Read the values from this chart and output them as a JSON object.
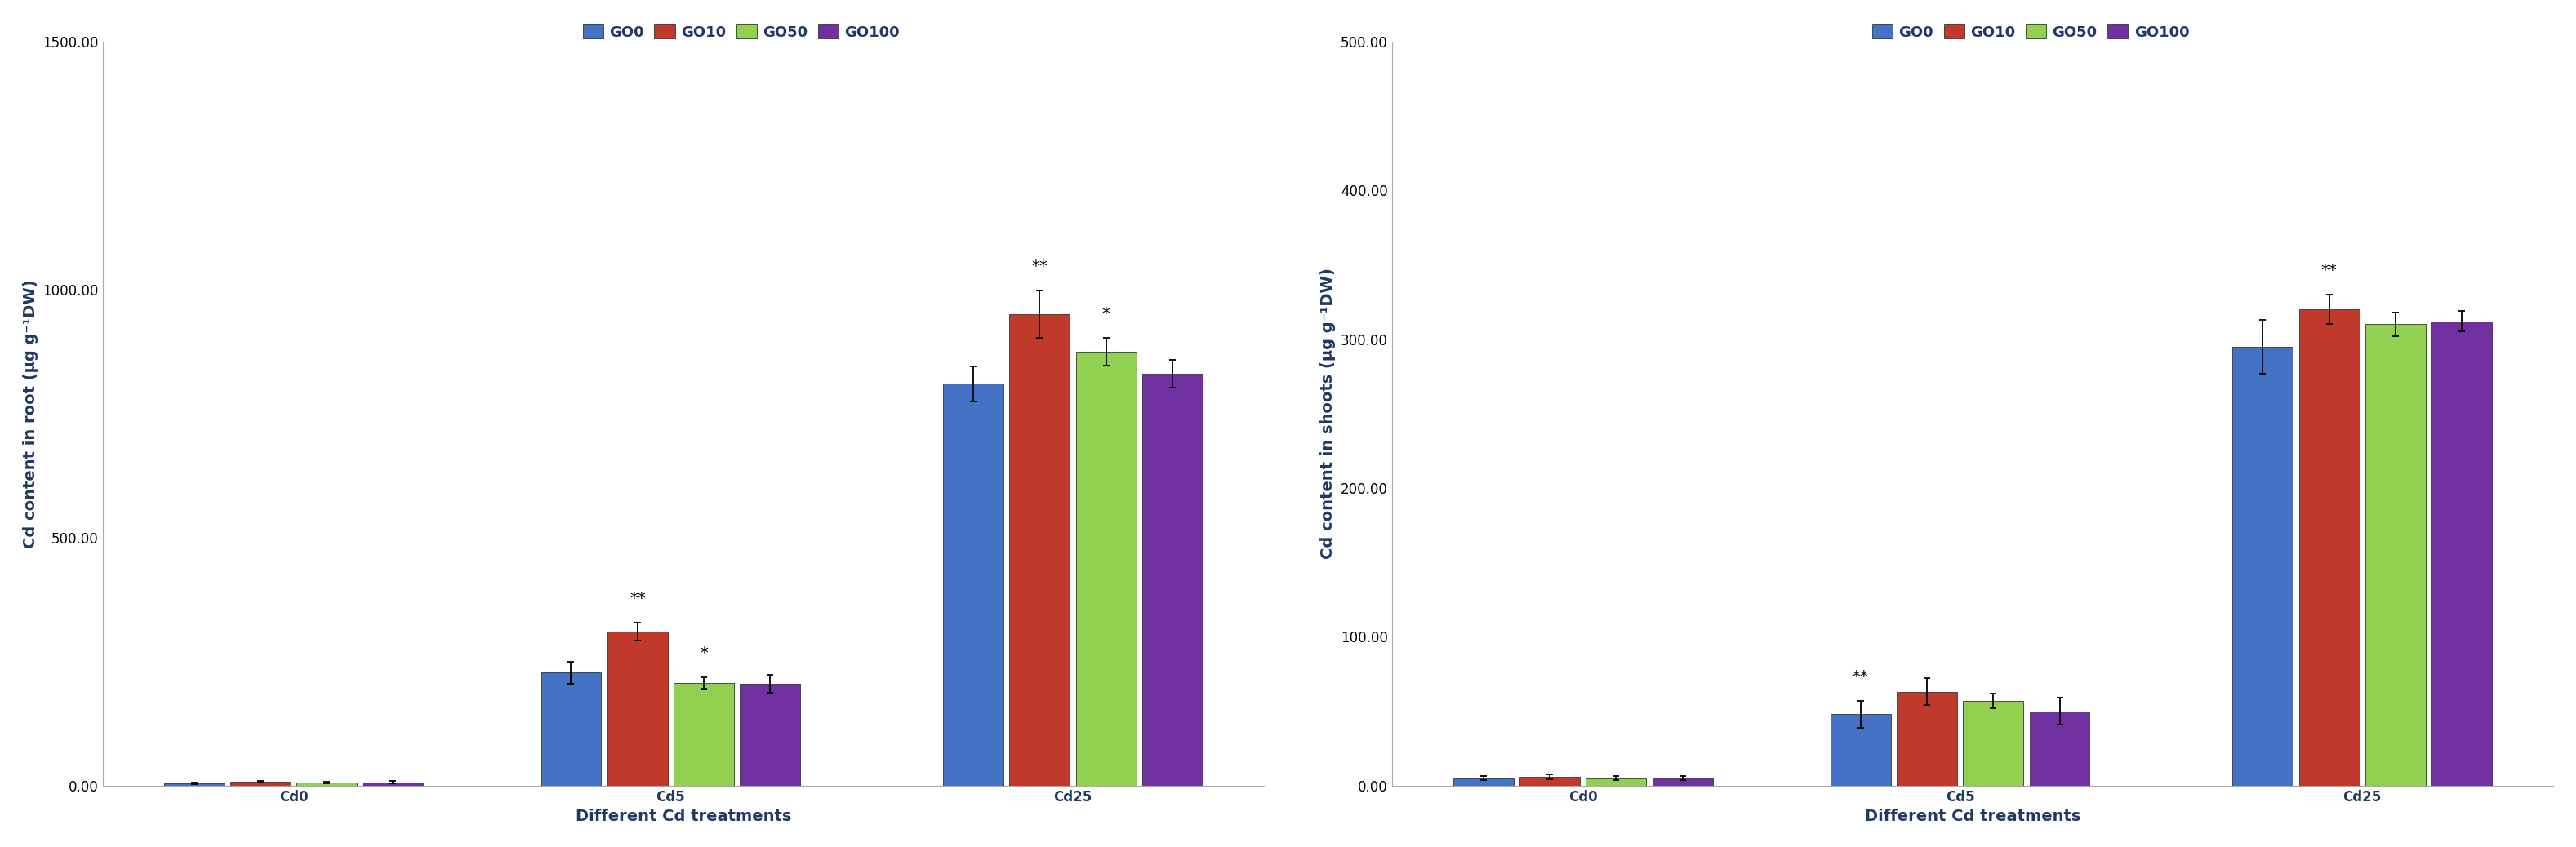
{
  "chart1": {
    "ylabel": "Cd content in root (μg g⁻¹DW)",
    "xlabel": "Different Cd treatments",
    "categories": [
      "Cd0",
      "Cd5",
      "Cd25"
    ],
    "groups": [
      "GO0",
      "GO10",
      "GO50",
      "GO100"
    ],
    "colors": [
      "#4472C4",
      "#C0392B",
      "#92D050",
      "#7030A0"
    ],
    "values": [
      [
        5,
        228,
        810
      ],
      [
        8,
        310,
        950
      ],
      [
        6,
        207,
        875
      ],
      [
        7,
        205,
        830
      ]
    ],
    "errors": [
      [
        2,
        22,
        35
      ],
      [
        2,
        18,
        48
      ],
      [
        2,
        12,
        28
      ],
      [
        2,
        18,
        28
      ]
    ],
    "ylim": [
      0,
      1500
    ],
    "yticks": [
      0,
      500,
      1000,
      1500
    ],
    "ytick_labels": [
      "0.00",
      "500.00",
      "1000.00",
      "1500.00"
    ],
    "significance": {
      "Cd5": {
        "GO10": "**",
        "GO50": "*"
      },
      "Cd25": {
        "GO10": "**",
        "GO50": "*"
      }
    }
  },
  "chart2": {
    "ylabel": "Cd content in shoots (μg g⁻¹DW)",
    "xlabel": "Different Cd treatments",
    "categories": [
      "Cd0",
      "Cd5",
      "Cd25"
    ],
    "groups": [
      "GO0",
      "GO10",
      "GO50",
      "GO100"
    ],
    "colors": [
      "#4472C4",
      "#C0392B",
      "#92D050",
      "#7030A0"
    ],
    "values": [
      [
        5,
        48,
        295
      ],
      [
        6,
        63,
        320
      ],
      [
        5,
        57,
        310
      ],
      [
        5,
        50,
        312
      ]
    ],
    "errors": [
      [
        1.5,
        9,
        18
      ],
      [
        1.5,
        9,
        10
      ],
      [
        1.5,
        5,
        8
      ],
      [
        1.5,
        9,
        7
      ]
    ],
    "ylim": [
      0,
      500
    ],
    "yticks": [
      0,
      100,
      200,
      300,
      400,
      500
    ],
    "ytick_labels": [
      "0.00",
      "100.00",
      "200.00",
      "300.00",
      "400.00",
      "500.00"
    ],
    "significance": {
      "Cd5": {
        "GO0": "**"
      },
      "Cd25": {
        "GO10": "**"
      }
    }
  },
  "legend_labels": [
    "GO0",
    "GO10",
    "GO50",
    "GO100"
  ],
  "legend_colors": [
    "#4472C4",
    "#C0392B",
    "#92D050",
    "#7030A0"
  ],
  "bar_width": 0.12,
  "fontsize_axis_label": 14,
  "fontsize_ticks": 12,
  "fontsize_legend": 13,
  "fontsize_sig": 14,
  "background_color": "#FFFFFF"
}
